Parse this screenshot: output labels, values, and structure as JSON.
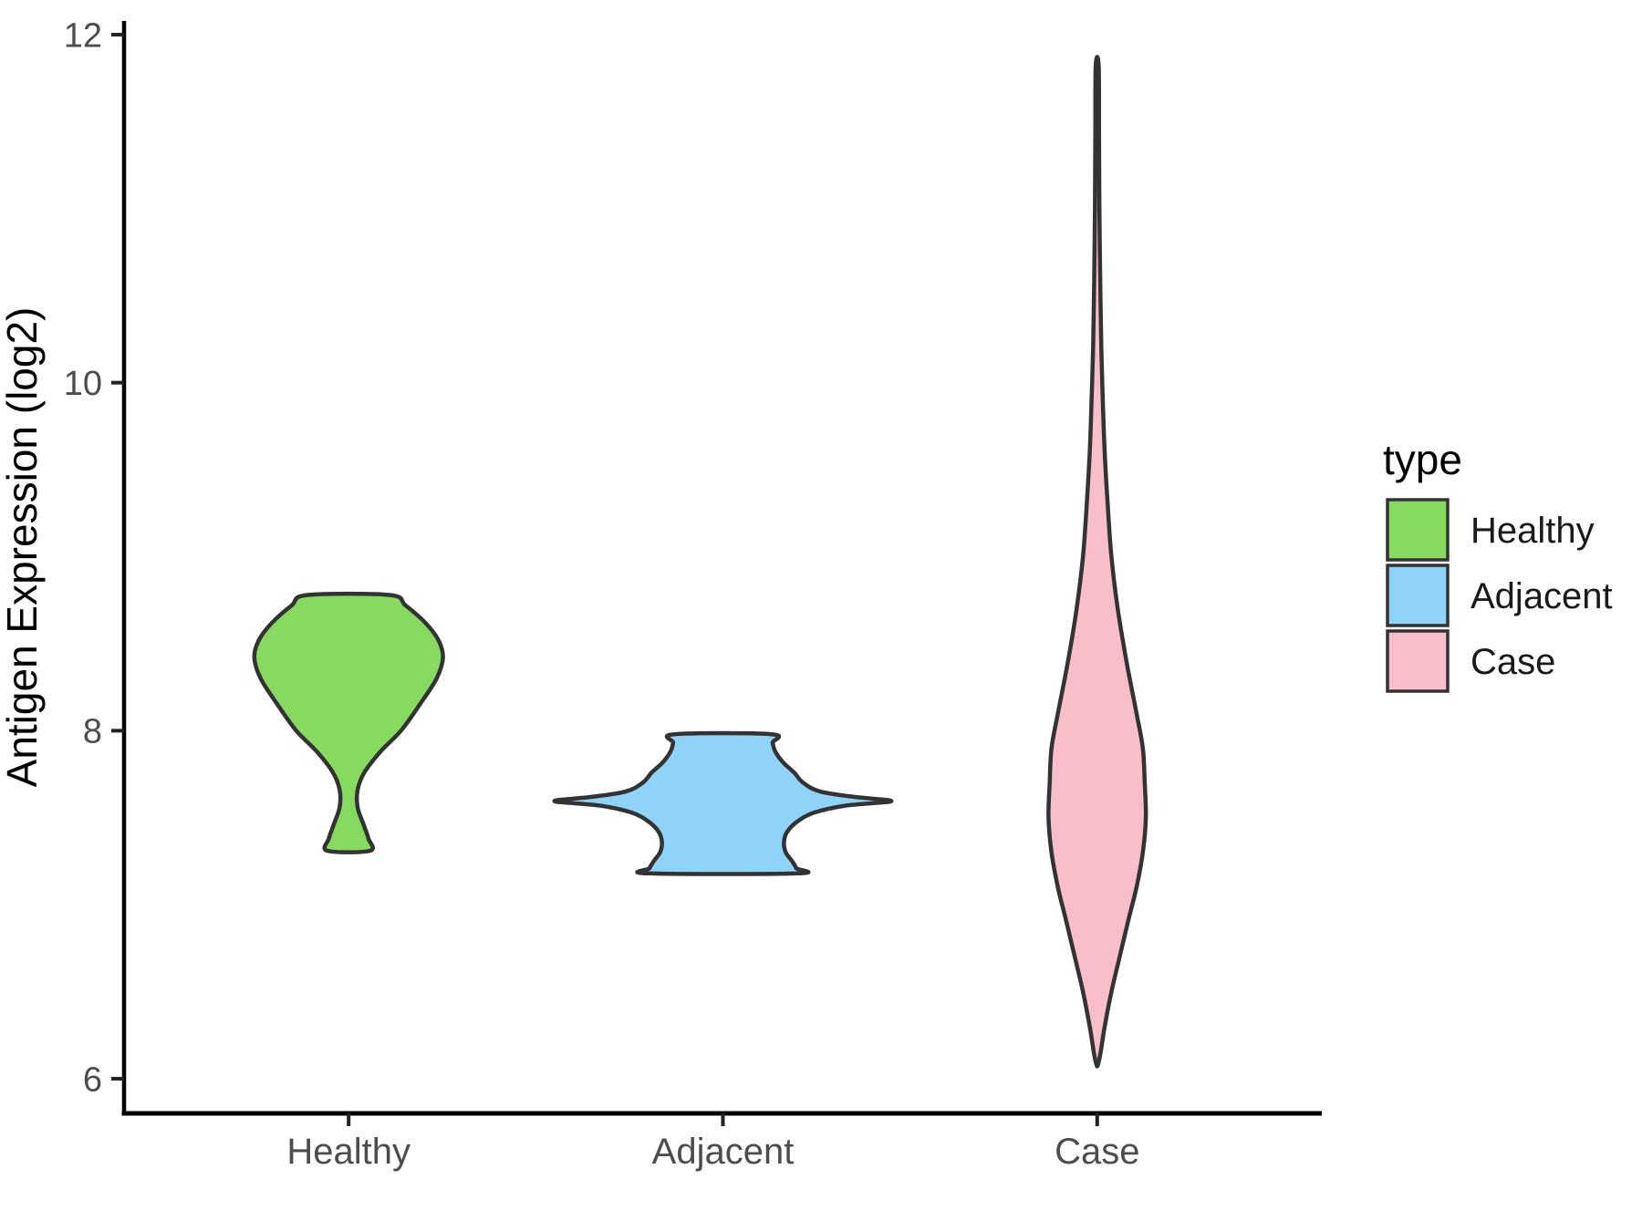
{
  "chart_data": {
    "type": "violin",
    "title": "",
    "xlabel": "",
    "ylabel": "Antigen Expression (log2)",
    "categories": [
      "Healthy",
      "Adjacent",
      "Case"
    ],
    "y_axis": {
      "ticks": [
        "6",
        "8",
        "10",
        "12"
      ],
      "tick_values": [
        6,
        8,
        10,
        12
      ],
      "range": [
        5.8,
        12.1
      ],
      "grid": false
    },
    "legend": {
      "title": "type",
      "position": "right",
      "entries": [
        {
          "label": "Healthy",
          "color": "#85da5f"
        },
        {
          "label": "Adjacent",
          "color": "#8fd3f8"
        },
        {
          "label": "Case",
          "color": "#f8bfca"
        }
      ]
    },
    "series": [
      {
        "name": "Healthy",
        "fill": "#85da5f",
        "outline": "#333333",
        "min": 7.31,
        "max": 8.78,
        "peak_density_at": 8.42,
        "profile": [
          [
            8.78,
            0.11
          ],
          [
            8.72,
            0.152
          ],
          [
            8.62,
            0.205
          ],
          [
            8.52,
            0.24
          ],
          [
            8.42,
            0.252
          ],
          [
            8.3,
            0.235
          ],
          [
            8.15,
            0.19
          ],
          [
            8.0,
            0.14
          ],
          [
            7.88,
            0.085
          ],
          [
            7.76,
            0.042
          ],
          [
            7.66,
            0.024
          ],
          [
            7.56,
            0.024
          ],
          [
            7.46,
            0.04
          ],
          [
            7.38,
            0.053
          ],
          [
            7.31,
            0.057
          ]
        ]
      },
      {
        "name": "Adjacent",
        "fill": "#8fd3f8",
        "outline": "#333333",
        "min": 7.18,
        "max": 7.98,
        "peak_density_at": 7.6,
        "profile": [
          [
            7.98,
            0.13
          ],
          [
            7.93,
            0.133
          ],
          [
            7.88,
            0.14
          ],
          [
            7.82,
            0.16
          ],
          [
            7.76,
            0.19
          ],
          [
            7.7,
            0.215
          ],
          [
            7.65,
            0.26
          ],
          [
            7.62,
            0.35
          ],
          [
            7.595,
            0.45
          ],
          [
            7.57,
            0.33
          ],
          [
            7.53,
            0.245
          ],
          [
            7.48,
            0.2
          ],
          [
            7.42,
            0.172
          ],
          [
            7.36,
            0.163
          ],
          [
            7.3,
            0.168
          ],
          [
            7.25,
            0.185
          ],
          [
            7.21,
            0.196
          ],
          [
            7.18,
            0.2
          ]
        ]
      },
      {
        "name": "Case",
        "fill": "#f8bfca",
        "outline": "#333333",
        "min": 6.08,
        "max": 11.82,
        "peak_density_at": 7.5,
        "profile": [
          [
            11.82,
            0.004
          ],
          [
            11.4,
            0.005
          ],
          [
            11.0,
            0.006
          ],
          [
            10.6,
            0.008
          ],
          [
            10.2,
            0.011
          ],
          [
            9.9,
            0.015
          ],
          [
            9.6,
            0.02
          ],
          [
            9.3,
            0.028
          ],
          [
            9.0,
            0.038
          ],
          [
            8.7,
            0.055
          ],
          [
            8.4,
            0.078
          ],
          [
            8.1,
            0.105
          ],
          [
            7.9,
            0.122
          ],
          [
            7.7,
            0.127
          ],
          [
            7.5,
            0.13
          ],
          [
            7.3,
            0.122
          ],
          [
            7.1,
            0.105
          ],
          [
            6.9,
            0.082
          ],
          [
            6.7,
            0.06
          ],
          [
            6.5,
            0.038
          ],
          [
            6.3,
            0.02
          ],
          [
            6.15,
            0.009
          ],
          [
            6.08,
            0.002
          ]
        ]
      }
    ],
    "colors": {
      "violin_outline": "#333333",
      "axis_line": "#000000",
      "tick_mark": "#222222",
      "axis_text": "#4d4d4d"
    }
  }
}
